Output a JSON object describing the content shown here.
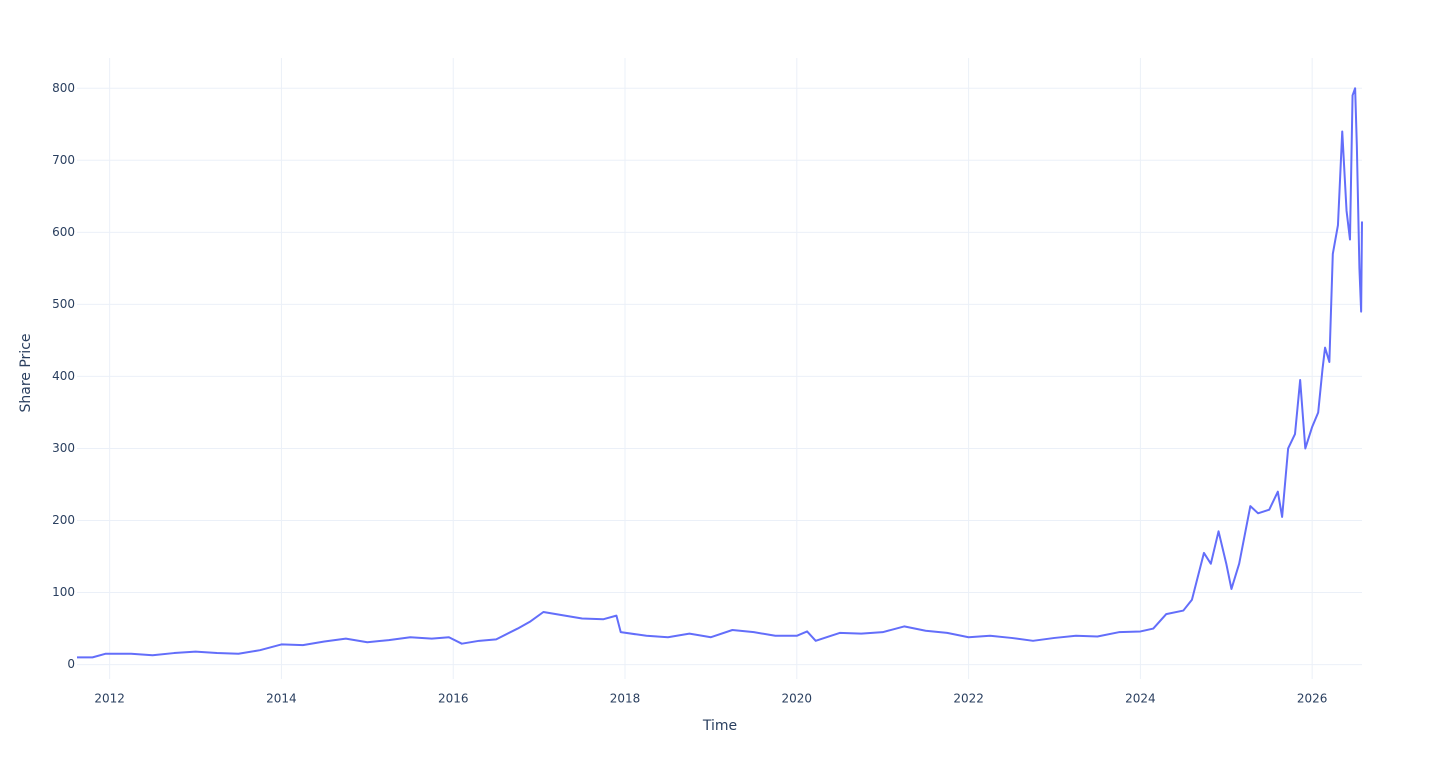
{
  "chart_data": {
    "type": "line",
    "x_label": "Time",
    "y_label": "Share Price",
    "x": [
      2011.62,
      2011.8,
      2011.95,
      2012.25,
      2012.5,
      2012.75,
      2013.0,
      2013.25,
      2013.5,
      2013.75,
      2014.0,
      2014.25,
      2014.5,
      2014.75,
      2015.0,
      2015.25,
      2015.5,
      2015.75,
      2015.95,
      2016.1,
      2016.3,
      2016.5,
      2016.75,
      2016.9,
      2017.05,
      2017.3,
      2017.5,
      2017.75,
      2017.9,
      2017.95,
      2018.25,
      2018.5,
      2018.75,
      2019.0,
      2019.25,
      2019.5,
      2019.75,
      2020.0,
      2020.12,
      2020.22,
      2020.5,
      2020.75,
      2021.0,
      2021.25,
      2021.5,
      2021.75,
      2022.0,
      2022.25,
      2022.5,
      2022.75,
      2023.0,
      2023.25,
      2023.5,
      2023.75,
      2024.0,
      2024.15,
      2024.3,
      2024.5,
      2024.6,
      2024.74,
      2024.82,
      2024.91,
      2025.0,
      2025.06,
      2025.15,
      2025.28,
      2025.37,
      2025.5,
      2025.6,
      2025.65,
      2025.72,
      2025.8,
      2025.86,
      2025.92,
      2026.0,
      2026.07,
      2026.12,
      2026.15,
      2026.2,
      2026.24,
      2026.3,
      2026.35,
      2026.4,
      2026.44,
      2026.47,
      2026.5,
      2026.52,
      2026.55,
      2026.57,
      2026.58
    ],
    "values": [
      10,
      10,
      15,
      15,
      13,
      16,
      18,
      16,
      15,
      20,
      28,
      27,
      32,
      36,
      31,
      34,
      38,
      36,
      38,
      29,
      33,
      35,
      50,
      60,
      73,
      68,
      64,
      63,
      68,
      45,
      40,
      38,
      43,
      38,
      48,
      45,
      40,
      40,
      46,
      33,
      44,
      43,
      45,
      53,
      47,
      44,
      38,
      40,
      37,
      33,
      37,
      40,
      39,
      45,
      46,
      50,
      70,
      75,
      90,
      155,
      140,
      185,
      140,
      105,
      140,
      220,
      210,
      215,
      240,
      205,
      300,
      320,
      395,
      300,
      330,
      350,
      410,
      440,
      420,
      570,
      610,
      740,
      630,
      590,
      790,
      800,
      720,
      550,
      490,
      615
    ],
    "color": "#636efa",
    "xlim": [
      2011.62,
      2026.58
    ],
    "xticks": [
      2012,
      2014,
      2016,
      2018,
      2020,
      2022,
      2024,
      2026
    ],
    "ylim": [
      -20,
      842
    ],
    "yticks": [
      0,
      100,
      200,
      300,
      400,
      500,
      600,
      700,
      800
    ],
    "grid": true
  }
}
